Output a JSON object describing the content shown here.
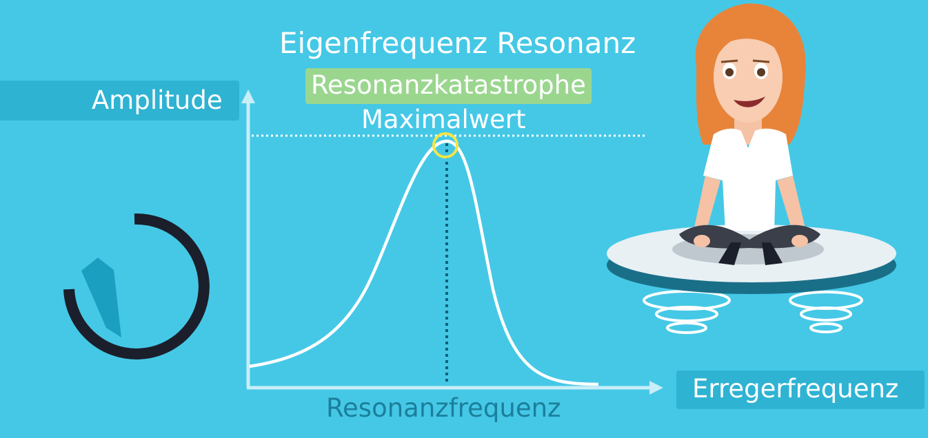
{
  "title": "Eigenfrequenz Resonanz",
  "badge_text": "Resonanzkatastrophe",
  "peak_label": "Maximalwert",
  "y_axis_label": "Amplitude",
  "x_axis_label": "Erregerfrequenz",
  "resonance_label": "Resonanzfrequenz",
  "colors": {
    "background": "#45c8e6",
    "label_box": "#2fb3d3",
    "badge": "#9bd68f",
    "peak_marker": "#f2e646",
    "resonance_text": "#1a7f9c"
  }
}
